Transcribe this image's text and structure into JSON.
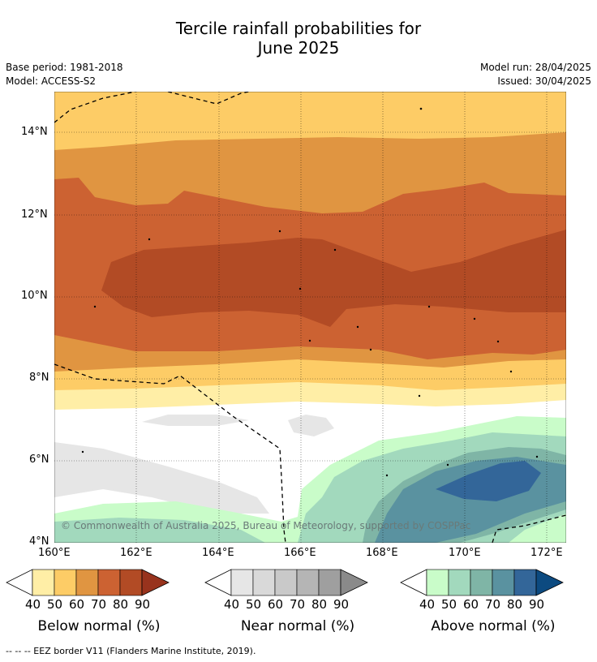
{
  "title_line1": "Tercile rainfall probabilities for",
  "title_line2": "June 2025",
  "base_period": "Base period: 1981-2018",
  "model": "Model: ACCESS-S2",
  "model_run": "Model run: 28/04/2025",
  "issued": "Issued: 30/04/2025",
  "credit": "© Commonwealth of Australia 2025, Bureau of Meteorology, supported by COSPPac",
  "footer": "--  --  -- EEZ border V11 (Flanders Marine Institute, 2019).",
  "map": {
    "lat_ticks": [
      "14°N",
      "12°N",
      "10°N",
      "8°N",
      "6°N",
      "4°N"
    ],
    "lon_ticks": [
      "160°E",
      "162°E",
      "164°E",
      "166°E",
      "168°E",
      "170°E",
      "172°E"
    ]
  },
  "colorbars": [
    {
      "label": "Below normal (%)",
      "ticks": [
        "40",
        "50",
        "60",
        "70",
        "80",
        "90"
      ],
      "colors": [
        "#ffeea6",
        "#fdcc66",
        "#e09541",
        "#cc6232",
        "#b24b25",
        "#98331d"
      ]
    },
    {
      "label": "Near normal (%)",
      "ticks": [
        "40",
        "50",
        "60",
        "70",
        "80",
        "90"
      ],
      "colors": [
        "#e6e6e6",
        "#d9d9d9",
        "#c9c9c9",
        "#b5b5b5",
        "#9f9f9f",
        "#8a8a8a"
      ]
    },
    {
      "label": "Above normal (%)",
      "ticks": [
        "40",
        "50",
        "60",
        "70",
        "80",
        "90"
      ],
      "colors": [
        "#c9fcc9",
        "#a2d9bd",
        "#7fb5a6",
        "#5a92a0",
        "#336699",
        "#0c4a80"
      ]
    }
  ]
}
